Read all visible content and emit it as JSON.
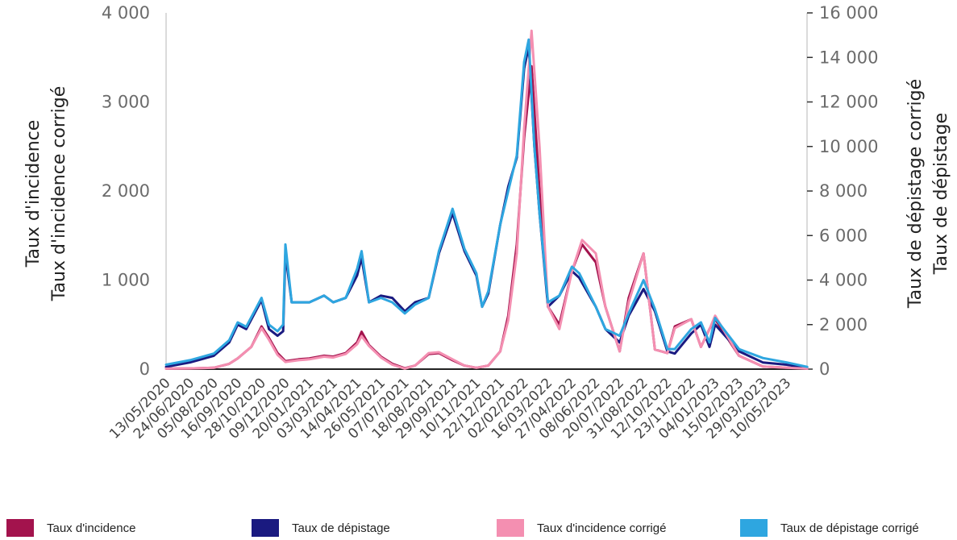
{
  "chart_data": {
    "type": "line",
    "x_ticks": [
      "13/05/2020",
      "24/06/2020",
      "05/08/2020",
      "16/09/2020",
      "28/10/2020",
      "09/12/2020",
      "20/01/2021",
      "03/03/2021",
      "14/04/2021",
      "26/05/2021",
      "07/07/2021",
      "18/08/2021",
      "29/09/2021",
      "10/11/2021",
      "22/12/2021",
      "02/02/2022",
      "16/03/2022",
      "27/04/2022",
      "08/06/2022",
      "20/07/2022",
      "31/08/2022",
      "12/10/2022",
      "23/11/2022",
      "04/01/2023",
      "15/02/2023",
      "29/03/2023",
      "10/05/2023"
    ],
    "y_left": {
      "title_lines": [
        "Taux d'incidence",
        "Taux d'incidence corrigé"
      ],
      "ticks": [
        "0",
        "1 000",
        "2 000",
        "3 000",
        "4 000"
      ],
      "range": [
        0,
        4000
      ]
    },
    "y_right": {
      "title_lines": [
        "Taux de dépistage corrigé",
        "Taux de dépistage"
      ],
      "ticks": [
        "0",
        "2 000",
        "4 000",
        "6 000",
        "8 000",
        "10 000",
        "12 000",
        "14 000",
        "16 000"
      ],
      "range": [
        0,
        16000
      ]
    },
    "series": [
      {
        "name": "Taux d'incidence",
        "axis": "left",
        "color": "#a3134d",
        "x": [
          "2020-05-13",
          "2020-06-24",
          "2020-08-05",
          "2020-09-01",
          "2020-09-16",
          "2020-10-10",
          "2020-10-28",
          "2020-11-10",
          "2020-11-25",
          "2020-12-09",
          "2021-01-01",
          "2021-01-20",
          "2021-02-15",
          "2021-03-03",
          "2021-03-25",
          "2021-04-14",
          "2021-04-22",
          "2021-05-05",
          "2021-05-26",
          "2021-06-15",
          "2021-07-07",
          "2021-07-25",
          "2021-08-18",
          "2021-09-05",
          "2021-09-29",
          "2021-10-20",
          "2021-11-10",
          "2021-12-01",
          "2021-12-22",
          "2022-01-05",
          "2022-01-20",
          "2022-02-02",
          "2022-02-15",
          "2022-03-01",
          "2022-03-16",
          "2022-04-05",
          "2022-04-27",
          "2022-05-15",
          "2022-06-08",
          "2022-06-25",
          "2022-07-20",
          "2022-08-05",
          "2022-08-31",
          "2022-09-20",
          "2022-10-12",
          "2022-10-25",
          "2022-11-23",
          "2022-12-10",
          "2022-12-25",
          "2023-01-04",
          "2023-02-15",
          "2023-03-29",
          "2023-05-10",
          "2023-06-15"
        ],
        "y": [
          5,
          8,
          15,
          60,
          120,
          250,
          480,
          350,
          180,
          90,
          110,
          120,
          150,
          140,
          180,
          300,
          420,
          270,
          140,
          60,
          10,
          40,
          170,
          180,
          100,
          40,
          15,
          40,
          200,
          600,
          1400,
          2600,
          3400,
          2000,
          700,
          500,
          1100,
          1400,
          1200,
          700,
          200,
          800,
          1300,
          220,
          180,
          480,
          560,
          250,
          450,
          560,
          150,
          30,
          15,
          5
        ]
      },
      {
        "name": "Taux de dépistage",
        "axis": "right",
        "color": "#1a1a80",
        "x": [
          "2020-05-13",
          "2020-06-24",
          "2020-08-05",
          "2020-09-01",
          "2020-09-16",
          "2020-10-01",
          "2020-10-28",
          "2020-11-10",
          "2020-11-25",
          "2020-12-05",
          "2020-12-09",
          "2020-12-20",
          "2021-01-20",
          "2021-02-15",
          "2021-03-03",
          "2021-03-25",
          "2021-04-14",
          "2021-04-22",
          "2021-05-05",
          "2021-05-26",
          "2021-06-15",
          "2021-07-07",
          "2021-07-25",
          "2021-08-18",
          "2021-09-05",
          "2021-09-29",
          "2021-10-20",
          "2021-11-10",
          "2021-11-20",
          "2021-12-01",
          "2021-12-22",
          "2022-01-05",
          "2022-01-20",
          "2022-02-02",
          "2022-02-10",
          "2022-02-20",
          "2022-03-01",
          "2022-03-16",
          "2022-04-05",
          "2022-04-27",
          "2022-05-10",
          "2022-06-08",
          "2022-06-25",
          "2022-07-20",
          "2022-08-05",
          "2022-08-31",
          "2022-09-20",
          "2022-10-12",
          "2022-10-25",
          "2022-11-23",
          "2022-12-10",
          "2022-12-25",
          "2023-01-04",
          "2023-02-15",
          "2023-03-29",
          "2023-05-10",
          "2023-06-15"
        ],
        "y": [
          100,
          300,
          600,
          1200,
          2000,
          1800,
          3100,
          1800,
          1500,
          1700,
          5200,
          3000,
          3000,
          3300,
          3000,
          3200,
          4200,
          5000,
          3000,
          3300,
          3200,
          2600,
          3000,
          3200,
          5200,
          7000,
          5300,
          4200,
          2800,
          3400,
          6500,
          8200,
          9500,
          13500,
          14500,
          10000,
          7000,
          2800,
          3300,
          4400,
          4100,
          2800,
          1800,
          1200,
          2400,
          3600,
          2600,
          800,
          700,
          1600,
          2000,
          1000,
          2000,
          800,
          300,
          200,
          50
        ]
      },
      {
        "name": "Taux d'incidence corrigé",
        "axis": "left",
        "color": "#f48fb1",
        "x": [
          "2020-05-13",
          "2020-06-24",
          "2020-08-05",
          "2020-09-01",
          "2020-09-16",
          "2020-10-10",
          "2020-10-28",
          "2020-11-10",
          "2020-11-25",
          "2020-12-09",
          "2021-01-01",
          "2021-01-20",
          "2021-02-15",
          "2021-03-03",
          "2021-03-25",
          "2021-04-14",
          "2021-04-22",
          "2021-05-05",
          "2021-05-26",
          "2021-06-15",
          "2021-07-07",
          "2021-07-25",
          "2021-08-18",
          "2021-09-05",
          "2021-09-29",
          "2021-10-20",
          "2021-11-10",
          "2021-12-01",
          "2021-12-22",
          "2022-01-05",
          "2022-01-20",
          "2022-02-02",
          "2022-02-15",
          "2022-03-01",
          "2022-03-16",
          "2022-04-05",
          "2022-04-27",
          "2022-05-15",
          "2022-06-08",
          "2022-06-25",
          "2022-07-20",
          "2022-08-05",
          "2022-08-31",
          "2022-09-20",
          "2022-10-12",
          "2022-10-25",
          "2022-11-23",
          "2022-12-10",
          "2022-12-25",
          "2023-01-04",
          "2023-02-15",
          "2023-03-29",
          "2023-05-10",
          "2023-06-15"
        ],
        "y": [
          5,
          8,
          15,
          60,
          120,
          250,
          460,
          330,
          160,
          80,
          100,
          110,
          140,
          130,
          170,
          280,
          370,
          260,
          130,
          50,
          5,
          40,
          180,
          190,
          110,
          40,
          15,
          40,
          200,
          550,
          1300,
          2700,
          3800,
          2500,
          700,
          450,
          1100,
          1450,
          1300,
          700,
          200,
          750,
          1300,
          220,
          180,
          460,
          560,
          250,
          450,
          600,
          150,
          30,
          15,
          5
        ]
      },
      {
        "name": "Taux de dépistage corrigé",
        "axis": "right",
        "color": "#2ea6e0",
        "x": [
          "2020-05-13",
          "2020-06-24",
          "2020-08-05",
          "2020-09-01",
          "2020-09-16",
          "2020-10-01",
          "2020-10-28",
          "2020-11-10",
          "2020-11-25",
          "2020-12-05",
          "2020-12-09",
          "2020-12-20",
          "2021-01-20",
          "2021-02-15",
          "2021-03-03",
          "2021-03-25",
          "2021-04-14",
          "2021-04-22",
          "2021-05-05",
          "2021-05-26",
          "2021-06-15",
          "2021-07-07",
          "2021-07-25",
          "2021-08-18",
          "2021-09-05",
          "2021-09-29",
          "2021-10-20",
          "2021-11-10",
          "2021-11-20",
          "2021-12-01",
          "2021-12-22",
          "2022-01-05",
          "2022-01-20",
          "2022-02-02",
          "2022-02-10",
          "2022-02-20",
          "2022-03-01",
          "2022-03-16",
          "2022-04-05",
          "2022-04-27",
          "2022-05-10",
          "2022-06-08",
          "2022-06-25",
          "2022-07-20",
          "2022-08-05",
          "2022-08-31",
          "2022-09-20",
          "2022-10-12",
          "2022-10-25",
          "2022-11-23",
          "2022-12-10",
          "2022-12-25",
          "2023-01-04",
          "2023-02-15",
          "2023-03-29",
          "2023-05-10",
          "2023-06-15"
        ],
        "y": [
          200,
          400,
          700,
          1300,
          2100,
          1900,
          3200,
          2000,
          1700,
          2000,
          5600,
          3000,
          3000,
          3300,
          3000,
          3200,
          4500,
          5300,
          3000,
          3200,
          3000,
          2500,
          2900,
          3200,
          5300,
          7200,
          5400,
          4300,
          2800,
          3500,
          6500,
          8000,
          9600,
          13800,
          14800,
          10000,
          7000,
          3000,
          3300,
          4600,
          4300,
          2800,
          1800,
          1500,
          2500,
          4000,
          2700,
          900,
          900,
          1800,
          2100,
          1200,
          2300,
          900,
          500,
          300,
          100
        ]
      }
    ]
  }
}
